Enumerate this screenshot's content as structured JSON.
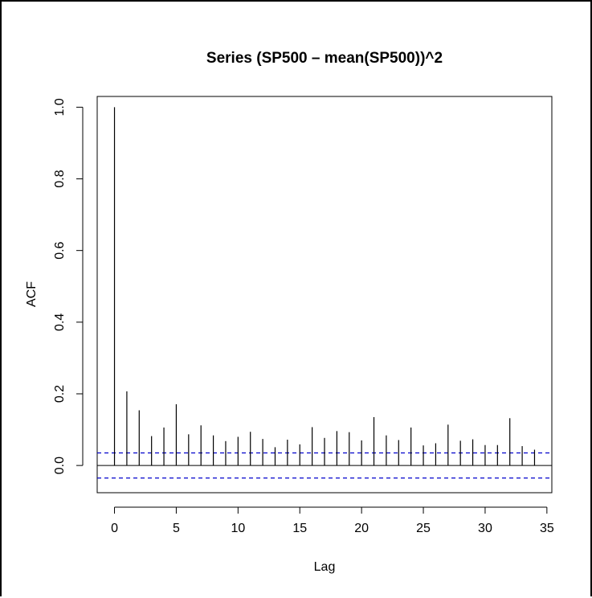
{
  "chart_data": {
    "type": "bar",
    "title": "Series  (SP500 – mean(SP500))^2",
    "xlabel": "Lag",
    "ylabel": "ACF",
    "xlim": [
      -1.4,
      35.4
    ],
    "ylim": [
      -0.076,
      1.03
    ],
    "x_ticks": [
      0,
      5,
      10,
      15,
      20,
      25,
      30,
      35
    ],
    "x_tick_labels": [
      "0",
      "5",
      "10",
      "15",
      "20",
      "25",
      "30",
      "35"
    ],
    "y_ticks": [
      0.0,
      0.2,
      0.4,
      0.6,
      0.8,
      1.0
    ],
    "y_tick_labels": [
      "0.0",
      "0.2",
      "0.4",
      "0.6",
      "0.8",
      "1.0"
    ],
    "lags": [
      0,
      1,
      2,
      3,
      4,
      5,
      6,
      7,
      8,
      9,
      10,
      11,
      12,
      13,
      14,
      15,
      16,
      17,
      18,
      19,
      20,
      21,
      22,
      23,
      24,
      25,
      26,
      27,
      28,
      29,
      30,
      31,
      32,
      33,
      34
    ],
    "values": [
      1.0,
      0.207,
      0.154,
      0.082,
      0.106,
      0.171,
      0.087,
      0.112,
      0.084,
      0.068,
      0.08,
      0.094,
      0.074,
      0.051,
      0.072,
      0.059,
      0.107,
      0.077,
      0.096,
      0.093,
      0.07,
      0.135,
      0.084,
      0.071,
      0.106,
      0.056,
      0.062,
      0.114,
      0.069,
      0.073,
      0.057,
      0.057,
      0.132,
      0.054,
      0.044
    ],
    "confidence_band": 0.035,
    "colors": {
      "bars": "#000000",
      "zero_line": "#000000",
      "confidence": "#0000cc"
    }
  }
}
